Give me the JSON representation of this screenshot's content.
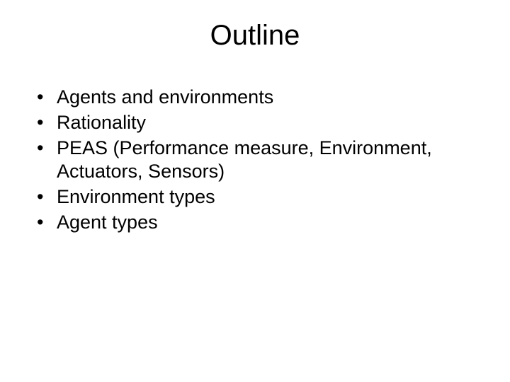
{
  "slide": {
    "title": "Outline",
    "title_fontsize": 40,
    "body_fontsize": 27,
    "background_color": "#ffffff",
    "text_color": "#000000",
    "font_family": "Arial",
    "bullets": [
      "Agents and environments",
      "Rationality",
      "PEAS (Performance measure, Environment, Actuators, Sensors)",
      "Environment types",
      "Agent types"
    ]
  }
}
